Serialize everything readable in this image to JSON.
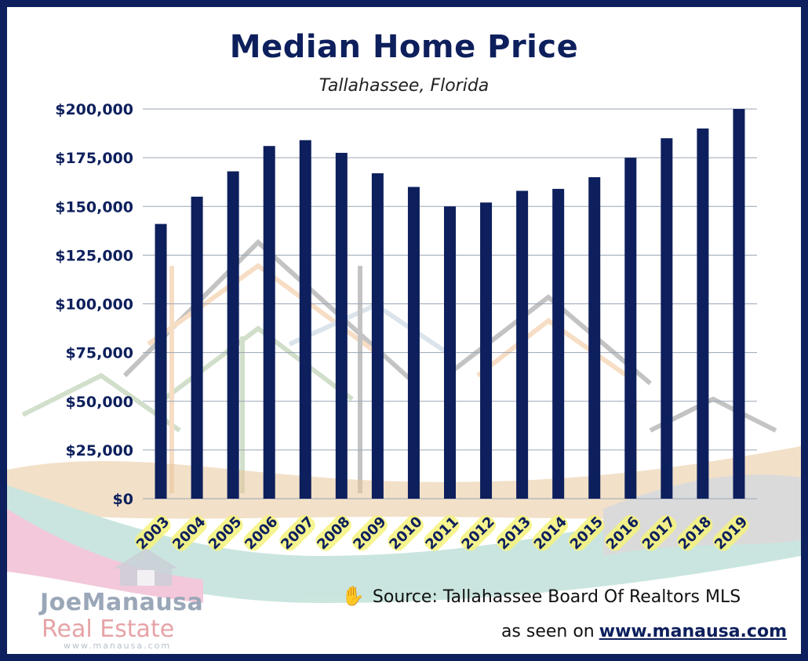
{
  "chart_data": {
    "type": "bar",
    "title": "Median Home Price",
    "subtitle": "Tallahassee, Florida",
    "categories": [
      "2003",
      "2004",
      "2005",
      "2006",
      "2007",
      "2008",
      "2009",
      "2010",
      "2011",
      "2012",
      "2013",
      "2014",
      "2015",
      "2016",
      "2017",
      "2018",
      "2019"
    ],
    "values": [
      141000,
      155000,
      168000,
      181000,
      184000,
      177500,
      167000,
      160000,
      150000,
      152000,
      158000,
      159000,
      165000,
      175000,
      185000,
      190000,
      200000
    ],
    "ylim": [
      0,
      200000
    ],
    "yticks": [
      "$0",
      "$25,000",
      "$50,000",
      "$75,000",
      "$100,000",
      "$125,000",
      "$150,000",
      "$175,000",
      "$200,000"
    ],
    "xlabel": "",
    "ylabel": "",
    "grid": true,
    "bar_color": "#0d1f5c",
    "highlight_color": "#f4f27a"
  },
  "source": {
    "hand_icon": "hand-icon",
    "text": "Source: Tallahassee Board Of Realtors MLS",
    "seen_prefix": "as seen on",
    "url": "www.manausa.com"
  },
  "logo": {
    "name_part1": "Joe",
    "name_part2": "Manausa",
    "tagline": "Real Estate",
    "website": "www.manausa.com"
  },
  "colors": {
    "border": "#0d1f5c",
    "title": "#0d1f5c"
  }
}
